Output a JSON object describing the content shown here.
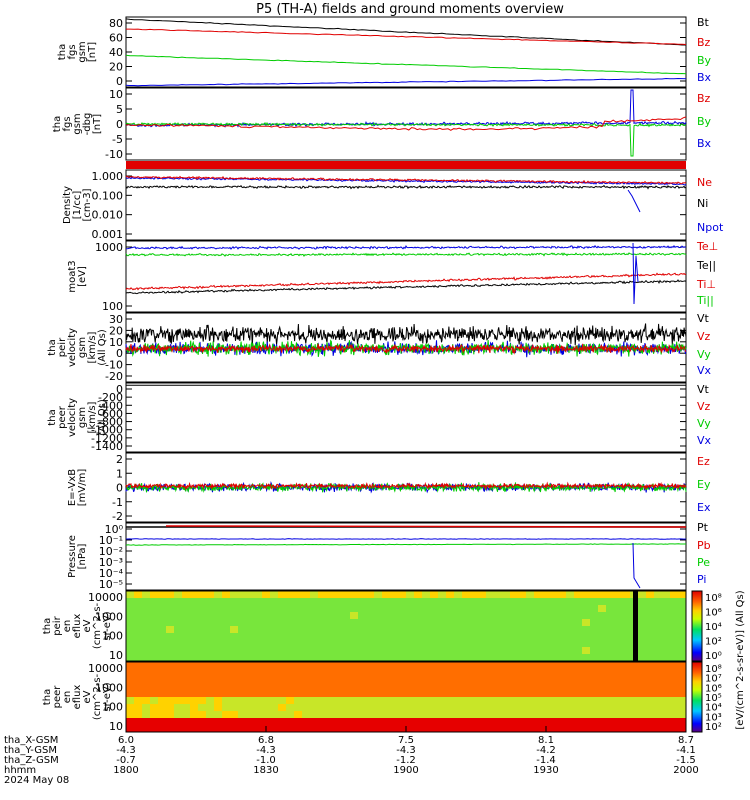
{
  "title": "P5 (TH-A) fields and ground moments overview",
  "colors": {
    "black": "#000000",
    "red": "#e00000",
    "green": "#00cc00",
    "blue": "#0000e0"
  },
  "chart_data": [
    {
      "id": "fgs",
      "type": "line",
      "ylabel": [
        "tha",
        "fgs",
        "gsm",
        "[nT]"
      ],
      "yticks": [
        "80",
        "60",
        "40",
        "20",
        "0"
      ],
      "yrange": [
        -5,
        95
      ],
      "legend": [
        "Bt",
        "Bz",
        "By",
        "Bx"
      ],
      "series": [
        {
          "name": "Bt",
          "color": "black",
          "start": 92,
          "end": 55
        },
        {
          "name": "Bz",
          "color": "red",
          "start": 78,
          "end": 56
        },
        {
          "name": "By",
          "color": "green",
          "start": 40,
          "end": 14
        },
        {
          "name": "Bx",
          "color": "blue",
          "start": -3,
          "end": 7
        }
      ]
    },
    {
      "id": "fgs_dbg",
      "type": "line",
      "ylabel": [
        "tha",
        "fgs",
        "gsm",
        "-dbg",
        "[nT]"
      ],
      "yticks": [
        "10",
        "5",
        "0",
        "-5",
        "-10"
      ],
      "yrange": [
        -15,
        14
      ],
      "legend": [
        "Bz",
        "By",
        "Bx"
      ]
    },
    {
      "id": "density",
      "type": "line",
      "scale": "log",
      "ylabel": [
        "Density",
        "[1/cc]",
        "[cm-3]"
      ],
      "yticks": [
        "1.000",
        "0.100",
        "0.010",
        "0.001"
      ],
      "legend": [
        "Ne",
        "Ni",
        "Npot"
      ]
    },
    {
      "id": "temp",
      "type": "line",
      "scale": "log",
      "ylabel": [
        "moat3",
        "[eV]"
      ],
      "yticks": [
        "1000",
        "100"
      ],
      "legend": [
        "Te⊥",
        "Te||",
        "Ti⊥",
        "Ti||"
      ]
    },
    {
      "id": "peir_vel",
      "type": "line",
      "ylabel": [
        "tha",
        "peir",
        "velocity",
        "gsm",
        "[km/s]",
        "(All Qs)"
      ],
      "yticks": [
        "30",
        "20",
        "10",
        "0",
        "-10",
        "-20"
      ],
      "yrange": [
        -28,
        32
      ],
      "legend": [
        "Vt",
        "Vz",
        "Vy",
        "Vx"
      ]
    },
    {
      "id": "peer_vel",
      "type": "line",
      "ylabel": [
        "tha",
        "peer",
        "velocity",
        "gsm",
        "[km/s]",
        "(All Qs)"
      ],
      "yticks": [
        "0",
        "-200",
        "-400",
        "-600",
        "-800",
        "-1000",
        "-1200",
        "-1400"
      ],
      "yrange": [
        -1450,
        50
      ],
      "legend": [
        "Vt",
        "Vz",
        "Vy",
        "Vx"
      ]
    },
    {
      "id": "efield",
      "type": "line",
      "ylabel": [
        "E=-VxB",
        "[mV/m]"
      ],
      "yticks": [
        "2",
        "1",
        "0",
        "-1",
        "-2"
      ],
      "yrange": [
        -2.2,
        2.2
      ],
      "legend": [
        "Ez",
        "Ey",
        "Ex"
      ]
    },
    {
      "id": "pressure",
      "type": "line",
      "scale": "log",
      "ylabel": [
        "Pressure",
        "[nPa]"
      ],
      "yticks": [
        "10⁰",
        "10⁻¹",
        "10⁻²",
        "10⁻³",
        "10⁻⁴",
        "10⁻⁵"
      ],
      "legend": [
        "Pt",
        "Pb",
        "Pe",
        "Pi"
      ]
    },
    {
      "id": "peir_eflux",
      "type": "heatmap",
      "ylabel": [
        "tha",
        "peir",
        "en",
        "eflux",
        "eV",
        "(cm^2-s-",
        "sr-eV)"
      ],
      "yticks": [
        "10000",
        "1000",
        "100",
        "10"
      ]
    },
    {
      "id": "peer_eflux",
      "type": "heatmap",
      "ylabel": [
        "tha",
        "peer",
        "en",
        "eflux",
        "eV",
        "(cm^2-s-",
        "sr-eV)"
      ],
      "yticks": [
        "10000",
        "1000",
        "100",
        "10"
      ]
    }
  ],
  "colorbar1": {
    "ticks": [
      "10⁸",
      "10⁶",
      "10⁴",
      "10²",
      "10⁰"
    ]
  },
  "colorbar2": {
    "ticks": [
      "10⁸",
      "10⁷",
      "10⁶",
      "10⁵",
      "10⁴",
      "10³",
      "10²"
    ]
  },
  "colorbar_label": "[eV/(cm^2-s-sr-eV)] (All Qs)",
  "xaxis": {
    "row_labels": [
      "tha_X-GSM",
      "tha_Y-GSM",
      "tha_Z-GSM",
      "hhmm",
      "2024 May 08"
    ],
    "columns": [
      {
        "x": "6.0",
        "y": "-4.3",
        "z": "-0.7",
        "t": "1800"
      },
      {
        "x": "6.8",
        "y": "-4.3",
        "z": "-1.0",
        "t": "1830"
      },
      {
        "x": "7.5",
        "y": "-4.3",
        "z": "-1.2",
        "t": "1900"
      },
      {
        "x": "8.1",
        "y": "-4.2",
        "z": "-1.4",
        "t": "1930"
      },
      {
        "x": "8.7",
        "y": "-4.1",
        "z": "-1.5",
        "t": "2000"
      }
    ]
  }
}
